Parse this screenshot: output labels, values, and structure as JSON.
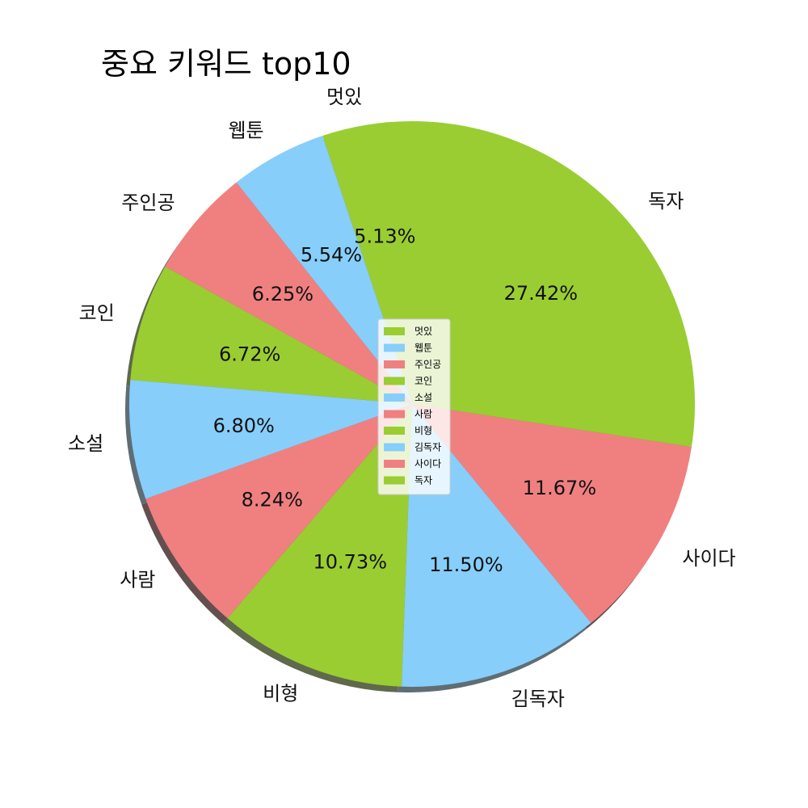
{
  "chart_data": {
    "type": "pie",
    "title": "중요 키워드 top10",
    "categories": [
      "멋있",
      "웹툰",
      "주인공",
      "코인",
      "소설",
      "사람",
      "비형",
      "김독자",
      "사이다",
      "독자"
    ],
    "values": [
      5.13,
      5.54,
      6.25,
      6.72,
      6.8,
      8.24,
      10.73,
      11.5,
      11.67,
      27.42
    ],
    "percent_labels": [
      "5.13%",
      "5.54%",
      "6.25%",
      "6.72%",
      "6.80%",
      "8.24%",
      "10.73%",
      "11.50%",
      "11.67%",
      "27.42%"
    ],
    "colors": [
      "#9acd32",
      "#87cefa",
      "#f08080",
      "#9acd32",
      "#87cefa",
      "#f08080",
      "#9acd32",
      "#87cefa",
      "#f08080",
      "#9acd32"
    ],
    "start_angle_deg": 90,
    "direction": "counterclockwise",
    "shadow": true,
    "legend_position": "center"
  }
}
